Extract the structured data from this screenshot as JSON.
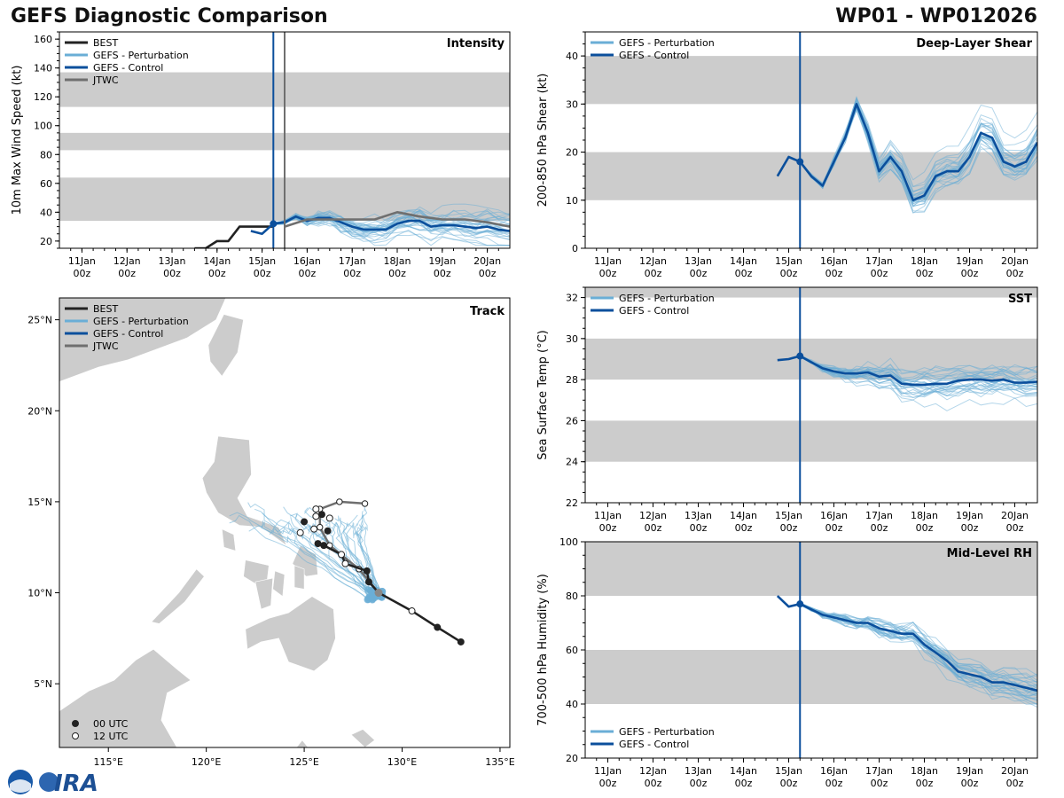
{
  "header": {
    "title_left": "GEFS Diagnostic Comparison",
    "title_right": "WP01 - WP012026"
  },
  "colors": {
    "best": "#222222",
    "perturbation": "#6aaed6",
    "control": "#0b4f9c",
    "jtwc": "#6f6f6f",
    "band": "#cccccc",
    "land": "#cccccc"
  },
  "time_axis": {
    "tick_labels": [
      "11Jan\n00z",
      "12Jan\n00z",
      "13Jan\n00z",
      "14Jan\n00z",
      "15Jan\n00z",
      "16Jan\n00z",
      "17Jan\n00z",
      "18Jan\n00z",
      "19Jan\n00z",
      "20Jan\n00z"
    ],
    "tick_days": [
      0,
      1,
      2,
      3,
      4,
      5,
      6,
      7,
      8,
      9
    ],
    "xlim_days": [
      -0.5,
      9.5
    ],
    "init_day": 4.25
  },
  "chart_data": [
    {
      "id": "intensity",
      "type": "line",
      "title": "Intensity",
      "ylabel": "10m Max Wind Speed (kt)",
      "ylim": [
        15,
        165
      ],
      "yticks": [
        20,
        40,
        60,
        80,
        100,
        120,
        140,
        160
      ],
      "bands": [
        [
          34,
          64
        ],
        [
          83,
          95
        ],
        [
          113,
          137
        ]
      ],
      "jtwc_init_day": 4.5,
      "legend": [
        "BEST",
        "GEFS - Perturbation",
        "GEFS - Control",
        "JTWC"
      ],
      "series": [
        {
          "name": "BEST",
          "x": [
            2.5,
            2.75,
            3,
            3.25,
            3.5,
            3.75,
            4,
            4.25
          ],
          "y": [
            15,
            15,
            20,
            20,
            30,
            30,
            30,
            30
          ]
        },
        {
          "name": "GEFS - Control",
          "x": [
            3.75,
            4,
            4.25,
            4.5,
            4.75,
            5,
            5.25,
            5.5,
            5.75,
            6,
            6.25,
            6.5,
            6.75,
            7,
            7.25,
            7.5,
            7.75,
            8,
            8.25,
            8.5,
            8.75,
            9,
            9.25,
            9.5
          ],
          "y": [
            27,
            25,
            32,
            33,
            37,
            34,
            36,
            36,
            33,
            30,
            28,
            28,
            28,
            32,
            34,
            34,
            30,
            31,
            31,
            30,
            29,
            30,
            28,
            27
          ]
        },
        {
          "name": "JTWC",
          "x": [
            4.5,
            5,
            5.5,
            6,
            6.5,
            7,
            7.5,
            8,
            8.5,
            9,
            9.5
          ],
          "y": [
            30,
            35,
            35,
            35,
            35,
            40,
            37,
            35,
            35,
            33,
            30
          ]
        }
      ]
    },
    {
      "id": "shear",
      "type": "line",
      "title": "Deep-Layer Shear",
      "ylabel": "200-850 hPa Shear (kt)",
      "ylim": [
        0,
        45
      ],
      "yticks": [
        0,
        10,
        20,
        30,
        40
      ],
      "bands": [
        [
          10,
          20
        ],
        [
          30,
          40
        ]
      ],
      "legend": [
        "GEFS - Perturbation",
        "GEFS - Control"
      ],
      "series": [
        {
          "name": "GEFS - Control",
          "x": [
            3.75,
            4,
            4.25,
            4.5,
            4.75,
            5,
            5.25,
            5.5,
            5.75,
            6,
            6.25,
            6.5,
            6.75,
            7,
            7.25,
            7.5,
            7.75,
            8,
            8.25,
            8.5,
            8.75,
            9,
            9.25,
            9.5
          ],
          "y": [
            15,
            19,
            18,
            15,
            13,
            18,
            23,
            30,
            24,
            16,
            19,
            16,
            10,
            11,
            15,
            16,
            16,
            19,
            24,
            23,
            18,
            17,
            18,
            22
          ]
        }
      ]
    },
    {
      "id": "sst",
      "type": "line",
      "title": "SST",
      "ylabel": "Sea Surface Temp (°C)",
      "ylim": [
        22,
        32.5
      ],
      "yticks": [
        22,
        24,
        26,
        28,
        30,
        32
      ],
      "bands": [
        [
          24,
          26
        ],
        [
          28,
          30
        ],
        [
          32,
          34
        ]
      ],
      "legend": [
        "GEFS - Perturbation",
        "GEFS - Control"
      ],
      "series": [
        {
          "name": "GEFS - Control",
          "x": [
            3.75,
            4,
            4.25,
            4.5,
            4.75,
            5,
            5.25,
            5.5,
            5.75,
            6,
            6.25,
            6.5,
            6.75,
            7,
            7.25,
            7.5,
            7.75,
            8,
            8.25,
            8.5,
            8.75,
            9,
            9.25,
            9.5
          ],
          "y": [
            28.95,
            29.0,
            29.15,
            28.85,
            28.55,
            28.4,
            28.3,
            28.3,
            28.35,
            28.15,
            28.2,
            27.8,
            27.75,
            27.75,
            27.8,
            27.8,
            27.95,
            28.0,
            28.0,
            27.95,
            28.0,
            27.85,
            27.85,
            27.9
          ]
        }
      ]
    },
    {
      "id": "rh",
      "type": "line",
      "title": "Mid-Level RH",
      "ylabel": "700-500 hPa Humidity (%)",
      "ylim": [
        20,
        100
      ],
      "yticks": [
        20,
        40,
        60,
        80,
        100
      ],
      "bands": [
        [
          40,
          60
        ],
        [
          80,
          100
        ]
      ],
      "legend": [
        "GEFS - Perturbation",
        "GEFS - Control"
      ],
      "series": [
        {
          "name": "GEFS - Control",
          "x": [
            3.75,
            4,
            4.25,
            4.5,
            4.75,
            5,
            5.25,
            5.5,
            5.75,
            6,
            6.25,
            6.5,
            6.75,
            7,
            7.25,
            7.5,
            7.75,
            8,
            8.25,
            8.5,
            8.75,
            9,
            9.25,
            9.5
          ],
          "y": [
            80,
            76,
            77,
            75,
            73,
            72,
            71,
            70,
            70,
            68,
            67,
            66,
            66,
            62,
            59,
            56,
            52,
            51,
            50,
            48,
            48,
            47,
            46,
            45
          ]
        }
      ]
    },
    {
      "id": "track",
      "type": "scatter",
      "title": "Track",
      "xlim": [
        112.5,
        135.5
      ],
      "ylim": [
        1.5,
        26.2
      ],
      "xtick_values": [
        115,
        120,
        125,
        130,
        135
      ],
      "xtick_labels": [
        "115°E",
        "120°E",
        "125°E",
        "130°E",
        "135°E"
      ],
      "ytick_values": [
        5,
        10,
        15,
        20,
        25
      ],
      "ytick_labels": [
        "5°N",
        "10°N",
        "15°N",
        "20°N",
        "25°N"
      ],
      "legend": [
        "BEST",
        "GEFS - Perturbation",
        "GEFS - Control",
        "JTWC"
      ],
      "point_legend": [
        "00 UTC",
        "12 UTC"
      ],
      "best_track": [
        {
          "lon": 133.0,
          "lat": 7.3,
          "utc": "00"
        },
        {
          "lon": 131.8,
          "lat": 8.1,
          "utc": "00"
        },
        {
          "lon": 130.5,
          "lat": 9.0,
          "utc": "12"
        },
        {
          "lon": 128.8,
          "lat": 10.0,
          "utc": "00"
        },
        {
          "lon": 128.3,
          "lat": 10.6,
          "utc": "00"
        },
        {
          "lon": 128.2,
          "lat": 11.2,
          "utc": "00"
        },
        {
          "lon": 127.1,
          "lat": 11.6,
          "utc": "12"
        },
        {
          "lon": 126.9,
          "lat": 12.1,
          "utc": "12"
        },
        {
          "lon": 126.0,
          "lat": 12.6,
          "utc": "00"
        },
        {
          "lon": 125.7,
          "lat": 12.7,
          "utc": "00"
        },
        {
          "lon": 124.8,
          "lat": 13.3,
          "utc": "12"
        },
        {
          "lon": 125.5,
          "lat": 13.5,
          "utc": "12"
        },
        {
          "lon": 126.2,
          "lat": 13.4,
          "utc": "00"
        },
        {
          "lon": 125.0,
          "lat": 13.9,
          "utc": "00"
        },
        {
          "lon": 125.6,
          "lat": 14.2,
          "utc": "12"
        },
        {
          "lon": 126.3,
          "lat": 14.1,
          "utc": "12"
        },
        {
          "lon": 125.9,
          "lat": 14.3,
          "utc": "00"
        },
        {
          "lon": 125.6,
          "lat": 14.6,
          "utc": "12"
        }
      ],
      "jtwc_track": [
        {
          "lon": 128.8,
          "lat": 10.0
        },
        {
          "lon": 127.8,
          "lat": 11.3
        },
        {
          "lon": 126.3,
          "lat": 12.6
        },
        {
          "lon": 125.8,
          "lat": 13.6
        },
        {
          "lon": 125.8,
          "lat": 14.6
        },
        {
          "lon": 126.8,
          "lat": 15.0
        },
        {
          "lon": 128.1,
          "lat": 14.9
        }
      ]
    }
  ]
}
